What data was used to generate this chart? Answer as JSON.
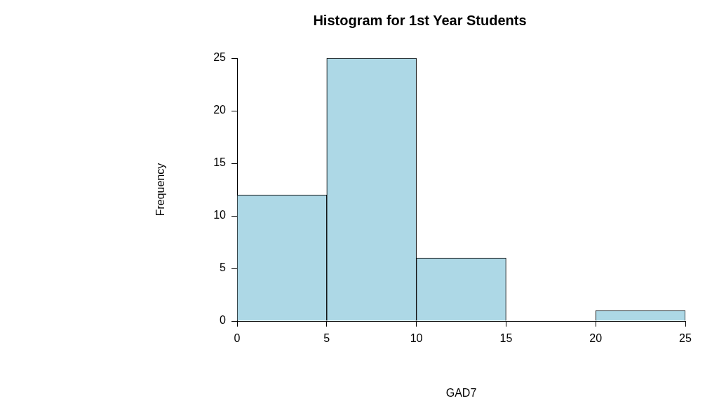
{
  "chart_data": {
    "type": "histogram",
    "title": "Histogram for 1st Year Students",
    "xlabel": "GAD7",
    "ylabel": "Frequency",
    "bins": [
      0,
      5,
      10,
      15,
      20,
      25
    ],
    "values": [
      12,
      25,
      6,
      0,
      1
    ],
    "color": "#add8e6",
    "xlim": [
      0,
      25
    ],
    "xticks": [
      0,
      5,
      10,
      15,
      20,
      25
    ],
    "ylim": [
      0,
      25
    ],
    "yticks": [
      0,
      5,
      10,
      15,
      20,
      25
    ]
  }
}
